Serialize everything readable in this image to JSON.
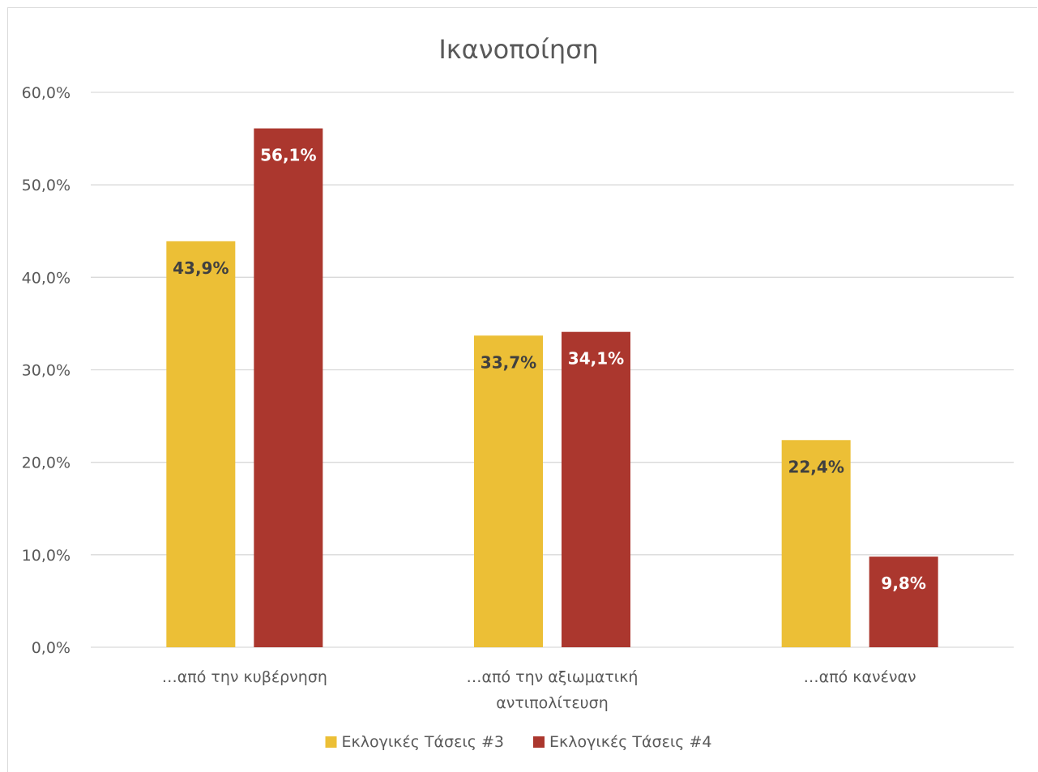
{
  "chart_data": {
    "type": "bar",
    "title": "Ικανοποίηση",
    "categories": [
      [
        "…από την κυβέρνηση"
      ],
      [
        "…από την αξιωματική",
        "αντιπολίτευση"
      ],
      [
        "…από κανέναν"
      ]
    ],
    "series": [
      {
        "name": "Εκλογικές Τάσεις #3",
        "color": "#ecbf36",
        "label_color": "#404040",
        "values": [
          43.9,
          33.7,
          22.4
        ],
        "labels": [
          "43,9%",
          "33,7%",
          "22,4%"
        ]
      },
      {
        "name": "Εκλογικές Τάσεις #4",
        "color": "#ab372e",
        "label_color": "#ffffff",
        "values": [
          56.1,
          34.1,
          9.8
        ],
        "labels": [
          "56,1%",
          "34,1%",
          "9,8%"
        ]
      }
    ],
    "ylim": [
      0,
      60
    ],
    "yticks": [
      0,
      10,
      20,
      30,
      40,
      50,
      60
    ],
    "ytick_labels": [
      "0,0%",
      "10,0%",
      "20,0%",
      "30,0%",
      "40,0%",
      "50,0%",
      "60,0%"
    ],
    "grid": true,
    "legend_position": "bottom"
  }
}
